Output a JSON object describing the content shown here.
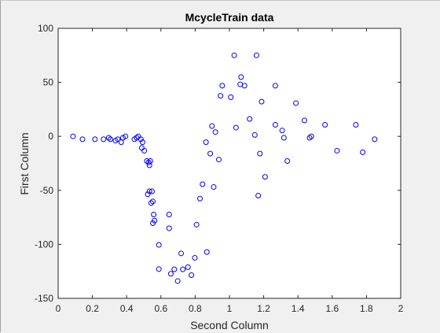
{
  "colors": {
    "background": "#f0f0f0",
    "axes_background": "#ffffff",
    "axis_line": "#262626",
    "marker": "#0000ff"
  },
  "chart_data": {
    "type": "scatter",
    "title": "McycleTrain data",
    "xlabel": "Second Column",
    "ylabel": "First Column",
    "xlim": [
      0,
      2
    ],
    "ylim": [
      -150,
      100
    ],
    "xticks": [
      0,
      0.2,
      0.4,
      0.6,
      0.8,
      1,
      1.2,
      1.4,
      1.6,
      1.8,
      2
    ],
    "xtick_labels": [
      "0",
      "0.2",
      "0.4",
      "0.6",
      "0.8",
      "1",
      "1.2",
      "1.4",
      "1.6",
      "1.8",
      "2"
    ],
    "yticks": [
      -150,
      -100,
      -50,
      0,
      50,
      100
    ],
    "ytick_labels": [
      "-150",
      "-100",
      "-50",
      "0",
      "50",
      "100"
    ],
    "grid": false,
    "marker": "circle-open",
    "series": [
      {
        "points": [
          [
            0.087,
            0.0
          ],
          [
            0.142,
            -2.7
          ],
          [
            0.215,
            -2.7
          ],
          [
            0.265,
            -2.7
          ],
          [
            0.295,
            -1.3
          ],
          [
            0.305,
            -2.7
          ],
          [
            0.335,
            -4.0
          ],
          [
            0.348,
            -2.7
          ],
          [
            0.368,
            -5.4
          ],
          [
            0.378,
            -1.3
          ],
          [
            0.393,
            0.0
          ],
          [
            0.445,
            -2.7
          ],
          [
            0.458,
            -1.3
          ],
          [
            0.468,
            0.0
          ],
          [
            0.483,
            -2.7
          ],
          [
            0.488,
            -10.7
          ],
          [
            0.493,
            -5.4
          ],
          [
            0.503,
            -13.3
          ],
          [
            0.518,
            -22.8
          ],
          [
            0.528,
            -24.1
          ],
          [
            0.538,
            -22.8
          ],
          [
            0.533,
            -26.8
          ],
          [
            0.523,
            -53.6
          ],
          [
            0.533,
            -50.9
          ],
          [
            0.548,
            -50.9
          ],
          [
            0.543,
            -61.7
          ],
          [
            0.553,
            -60.3
          ],
          [
            0.558,
            -72.4
          ],
          [
            0.553,
            -80.4
          ],
          [
            0.563,
            -78.0
          ],
          [
            0.588,
            -100.5
          ],
          [
            0.588,
            -122.9
          ],
          [
            0.648,
            -72.4
          ],
          [
            0.648,
            -85.1
          ],
          [
            0.658,
            -127.2
          ],
          [
            0.678,
            -123.1
          ],
          [
            0.698,
            -134.0
          ],
          [
            0.718,
            -108.4
          ],
          [
            0.728,
            -123.1
          ],
          [
            0.758,
            -121.1
          ],
          [
            0.778,
            -128.5
          ],
          [
            0.798,
            -112.5
          ],
          [
            0.808,
            -81.8
          ],
          [
            0.828,
            -57.6
          ],
          [
            0.843,
            -44.3
          ],
          [
            0.868,
            -107.1
          ],
          [
            0.863,
            -5.4
          ],
          [
            0.888,
            -16.0
          ],
          [
            0.898,
            9.5
          ],
          [
            0.908,
            -46.9
          ],
          [
            0.918,
            4.0
          ],
          [
            0.938,
            -21.5
          ],
          [
            0.948,
            37.5
          ],
          [
            0.958,
            46.9
          ],
          [
            1.008,
            36.2
          ],
          [
            1.028,
            75.0
          ],
          [
            1.038,
            8.1
          ],
          [
            1.063,
            48.2
          ],
          [
            1.068,
            54.9
          ],
          [
            1.088,
            46.9
          ],
          [
            1.118,
            16.1
          ],
          [
            1.148,
            1.3
          ],
          [
            1.158,
            75.0
          ],
          [
            1.178,
            -16.0
          ],
          [
            1.168,
            -54.9
          ],
          [
            1.188,
            32.1
          ],
          [
            1.208,
            -37.5
          ],
          [
            1.268,
            46.9
          ],
          [
            1.268,
            10.7
          ],
          [
            1.308,
            5.4
          ],
          [
            1.318,
            -1.3
          ],
          [
            1.338,
            -22.8
          ],
          [
            1.388,
            30.8
          ],
          [
            1.438,
            14.7
          ],
          [
            1.468,
            -1.3
          ],
          [
            1.478,
            0.0
          ],
          [
            1.558,
            10.7
          ],
          [
            1.628,
            -13.3
          ],
          [
            1.738,
            10.7
          ],
          [
            1.778,
            -14.7
          ],
          [
            1.848,
            -2.7
          ]
        ]
      }
    ]
  }
}
